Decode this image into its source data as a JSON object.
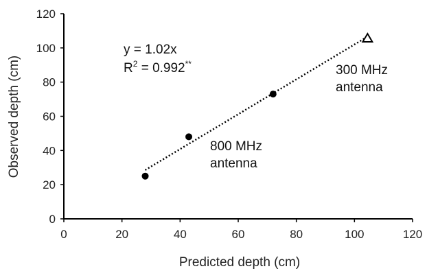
{
  "chart_data": {
    "type": "scatter",
    "xlabel": "Predicted depth (cm)",
    "ylabel": "Observed depth (cm)",
    "xlim": [
      0,
      120
    ],
    "ylim": [
      0,
      120
    ],
    "xticks": [
      "0",
      "20",
      "40",
      "60",
      "80",
      "100",
      "120"
    ],
    "yticks": [
      "0",
      "20",
      "40",
      "60",
      "80",
      "100",
      "120"
    ],
    "grid": false,
    "series": [
      {
        "marker": "circle",
        "points": [
          {
            "x": 28,
            "y": 25
          },
          {
            "x": 43,
            "y": 48
          },
          {
            "x": 72,
            "y": 73
          }
        ]
      },
      {
        "marker": "triangle",
        "points": [
          {
            "x": 104.5,
            "y": 105.5
          }
        ]
      }
    ],
    "trendline": {
      "style": "dotted",
      "slope": 1.02,
      "x_start": 28,
      "x_end": 104.5
    },
    "annotations": {
      "equation": "y = 1.02x",
      "r2_prefix": "R",
      "r2_sup": "2",
      "r2_value": " = 0.992",
      "r2_stars": "**",
      "label_300_line1": "300 MHz",
      "label_300_line2": "antenna",
      "label_800_line1": "800 MHz",
      "label_800_line2": "antenna"
    },
    "colors": {
      "marker": "#000000",
      "axis": "#000000",
      "trendline": "#000000"
    }
  }
}
